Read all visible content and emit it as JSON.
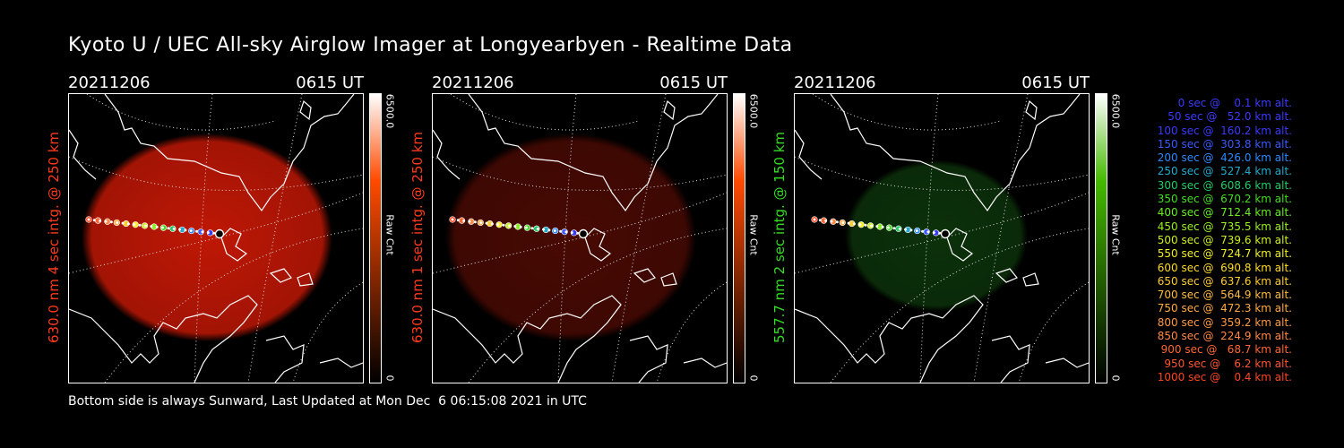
{
  "title": "Kyoto U / UEC All-sky Airglow Imager at Longyearbyen - Realtime Data",
  "footer": "Bottom side is always Sunward, Last Updated at Mon Dec  6 06:15:08 2021 in UTC",
  "panels": [
    {
      "date": "20211206",
      "time": "0615 UT",
      "ylabel": "630.0 nm 4 sec intg. @ 250 km",
      "ylabel_color": "#ff3a1a",
      "glow": "#d41a06",
      "glow_opacity": 0.9,
      "cbar_top": "#ffffff",
      "cbar_mid": "#ff4a00",
      "cbar_bottom": "#000000",
      "cbar_max": "6500.0",
      "cbar_min": "0",
      "cbar_label": "Raw Cnt"
    },
    {
      "date": "20211206",
      "time": "0615 UT",
      "ylabel": "630.0 nm 1 sec intg. @ 250 km",
      "ylabel_color": "#ff3a1a",
      "glow": "#5a0c04",
      "glow_opacity": 0.8,
      "cbar_top": "#ffffff",
      "cbar_mid": "#ff4a00",
      "cbar_bottom": "#000000",
      "cbar_max": "6500.0",
      "cbar_min": "0",
      "cbar_label": "Raw Cnt"
    },
    {
      "date": "20211206",
      "time": "0615 UT",
      "ylabel": "557.7 nm 2 sec intg. @ 150 km",
      "ylabel_color": "#33dd22",
      "glow": "#0e3a0c",
      "glow_opacity": 0.85,
      "cbar_top": "#ffffff",
      "cbar_mid": "#44bb00",
      "cbar_bottom": "#000000",
      "cbar_max": "6500.0",
      "cbar_min": "0",
      "cbar_label": "Raw Cnt"
    }
  ],
  "legend": [
    {
      "text": "   0 sec @    0.1 km alt.",
      "color": "#3a3aff"
    },
    {
      "text": "  50 sec @   52.0 km alt.",
      "color": "#3a3aff"
    },
    {
      "text": " 100 sec @  160.2 km alt.",
      "color": "#3a3aff"
    },
    {
      "text": " 150 sec @  303.8 km alt.",
      "color": "#3a5aff"
    },
    {
      "text": " 200 sec @  426.0 km alt.",
      "color": "#2a8aff"
    },
    {
      "text": " 250 sec @  527.4 km alt.",
      "color": "#22aacc"
    },
    {
      "text": " 300 sec @  608.6 km alt.",
      "color": "#22cc66"
    },
    {
      "text": " 350 sec @  670.2 km alt.",
      "color": "#44dd22"
    },
    {
      "text": " 400 sec @  712.4 km alt.",
      "color": "#66ee22"
    },
    {
      "text": " 450 sec @  735.5 km alt.",
      "color": "#99ee22"
    },
    {
      "text": " 500 sec @  739.6 km alt.",
      "color": "#ccee22"
    },
    {
      "text": " 550 sec @  724.7 km alt.",
      "color": "#eeee22"
    },
    {
      "text": " 600 sec @  690.8 km alt.",
      "color": "#ffdd22"
    },
    {
      "text": " 650 sec @  637.6 km alt.",
      "color": "#ffcc33"
    },
    {
      "text": " 700 sec @  564.9 km alt.",
      "color": "#ffbb44"
    },
    {
      "text": " 750 sec @  472.3 km alt.",
      "color": "#ffaa44"
    },
    {
      "text": " 800 sec @  359.2 km alt.",
      "color": "#ff9944"
    },
    {
      "text": " 850 sec @  224.9 km alt.",
      "color": "#ff8844"
    },
    {
      "text": " 900 sec @   68.7 km alt.",
      "color": "#ff6633"
    },
    {
      "text": " 950 sec @    6.2 km alt.",
      "color": "#ff5533"
    },
    {
      "text": "1000 sec @    0.4 km alt.",
      "color": "#ff4422"
    }
  ]
}
